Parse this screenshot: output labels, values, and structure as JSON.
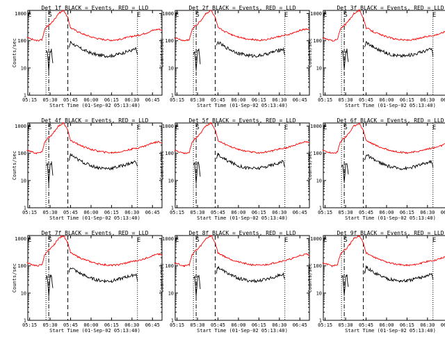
{
  "panels": [
    {
      "title": "Det 1f BLACK = Events, RED = LLD",
      "top_marks": [
        "E",
        "S",
        "E"
      ]
    },
    {
      "title": "Det 2f BLACK = Events, RED = LLD",
      "top_marks": [
        "E",
        "S",
        "E"
      ]
    },
    {
      "title": "Det 3f BLACK = Events, RED = LLD",
      "top_marks": [
        "E",
        "S",
        "E"
      ]
    },
    {
      "title": "Det 4f BLACK = Events, RED = LLD",
      "top_marks": [
        "E",
        "S",
        "E"
      ]
    },
    {
      "title": "Det 5f BLACK = Events, RED = LLD",
      "top_marks": [
        "E",
        "S",
        "E"
      ]
    },
    {
      "title": "Det 6f BLACK = Events, RED = LLD",
      "top_marks": [
        "E",
        "S",
        "E"
      ]
    },
    {
      "title": "Det 7f BLACK = Events, RED = LLD",
      "top_marks": [
        "E",
        "S",
        "E"
      ]
    },
    {
      "title": "Det 8f BLACK = Events, RED = LLD",
      "top_marks": [
        "E",
        "S",
        "E"
      ]
    },
    {
      "title": "Det 9f BLACK = Events, RED = LLD",
      "top_marks": [
        "E",
        "S",
        "E"
      ]
    }
  ],
  "xlabel": "Start Time (01-Sep-02 05:13:40)",
  "ylabel": "Counts/sec",
  "x_ticks": [
    "05:15",
    "05:30",
    "05:45",
    "06:00",
    "06:15",
    "06:30",
    "06:45"
  ],
  "y_ticks": [
    "1",
    "10",
    "100",
    "1000"
  ],
  "colors": {
    "events": "#000000",
    "lld": "#ff0000",
    "axes": "#000000",
    "background": "#ffffff"
  },
  "chart_data": {
    "type": "line",
    "layout": "3x3 grid of detector panels",
    "x_unit": "time (HH:MM) on 01-Sep-02",
    "y_scale": "log",
    "xlim": [
      "05:13:40",
      "06:52:00"
    ],
    "ylim": [
      1,
      1300
    ],
    "vertical_markers": [
      {
        "time": "05:27",
        "style": "dotted"
      },
      {
        "time": "05:29",
        "style": "dash-dot"
      },
      {
        "time": "05:43",
        "style": "dashed"
      },
      {
        "time": "06:34",
        "style": "dotted"
      }
    ],
    "series": [
      {
        "name": "Events",
        "color": "#000000",
        "points": [
          [
            "05:27",
            35
          ],
          [
            "05:28",
            40
          ],
          [
            "05:29",
            8
          ],
          [
            "05:30",
            40
          ],
          [
            "05:31",
            45
          ],
          [
            "05:32",
            15
          ],
          [
            "05:44",
            60
          ],
          [
            "05:45",
            90
          ],
          [
            "05:50",
            60
          ],
          [
            "05:55",
            45
          ],
          [
            "06:00",
            35
          ],
          [
            "06:05",
            30
          ],
          [
            "06:10",
            28
          ],
          [
            "06:15",
            28
          ],
          [
            "06:20",
            32
          ],
          [
            "06:25",
            38
          ],
          [
            "06:30",
            45
          ],
          [
            "06:33",
            50
          ],
          [
            "06:34",
            30
          ]
        ]
      },
      {
        "name": "LLD",
        "color": "#ff0000",
        "points": [
          [
            "05:13",
            130
          ],
          [
            "05:20",
            100
          ],
          [
            "05:24",
            110
          ],
          [
            "05:26",
            250
          ],
          [
            "05:28",
            350
          ],
          [
            "05:30",
            400
          ],
          [
            "05:33",
            600
          ],
          [
            "05:36",
            1000
          ],
          [
            "05:40",
            1300
          ],
          [
            "05:43",
            700
          ],
          [
            "05:45",
            300
          ],
          [
            "05:50",
            220
          ],
          [
            "05:55",
            170
          ],
          [
            "06:00",
            140
          ],
          [
            "06:05",
            120
          ],
          [
            "06:10",
            110
          ],
          [
            "06:15",
            105
          ],
          [
            "06:20",
            110
          ],
          [
            "06:25",
            125
          ],
          [
            "06:30",
            145
          ],
          [
            "06:35",
            160
          ],
          [
            "06:40",
            190
          ],
          [
            "06:45",
            240
          ],
          [
            "06:50",
            270
          ],
          [
            "06:52",
            240
          ]
        ]
      }
    ]
  }
}
